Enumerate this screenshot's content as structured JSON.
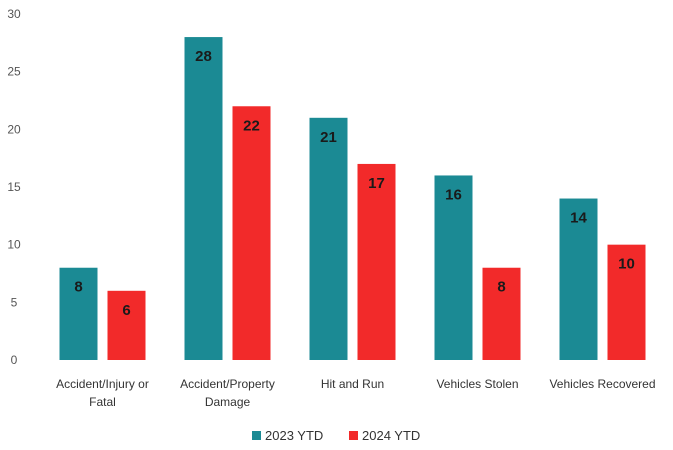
{
  "chart_data": {
    "type": "bar",
    "title": "",
    "xlabel": "",
    "ylabel": "",
    "ylim": [
      0,
      30
    ],
    "yticks": [
      0,
      5,
      10,
      15,
      20,
      25,
      30
    ],
    "grid": false,
    "legend_position": "bottom-center",
    "categories": [
      [
        "Accident/Injury or",
        "Fatal"
      ],
      [
        "Accident/Property",
        "Damage"
      ],
      [
        "Hit and Run"
      ],
      [
        "Vehicles Stolen"
      ],
      [
        "Vehicles Recovered"
      ]
    ],
    "series": [
      {
        "name": "2023 YTD",
        "color": "#1b8a94",
        "values": [
          8,
          28,
          21,
          16,
          14
        ]
      },
      {
        "name": "2024 YTD",
        "color": "#f22a2a",
        "values": [
          6,
          22,
          17,
          8,
          10
        ]
      }
    ]
  }
}
